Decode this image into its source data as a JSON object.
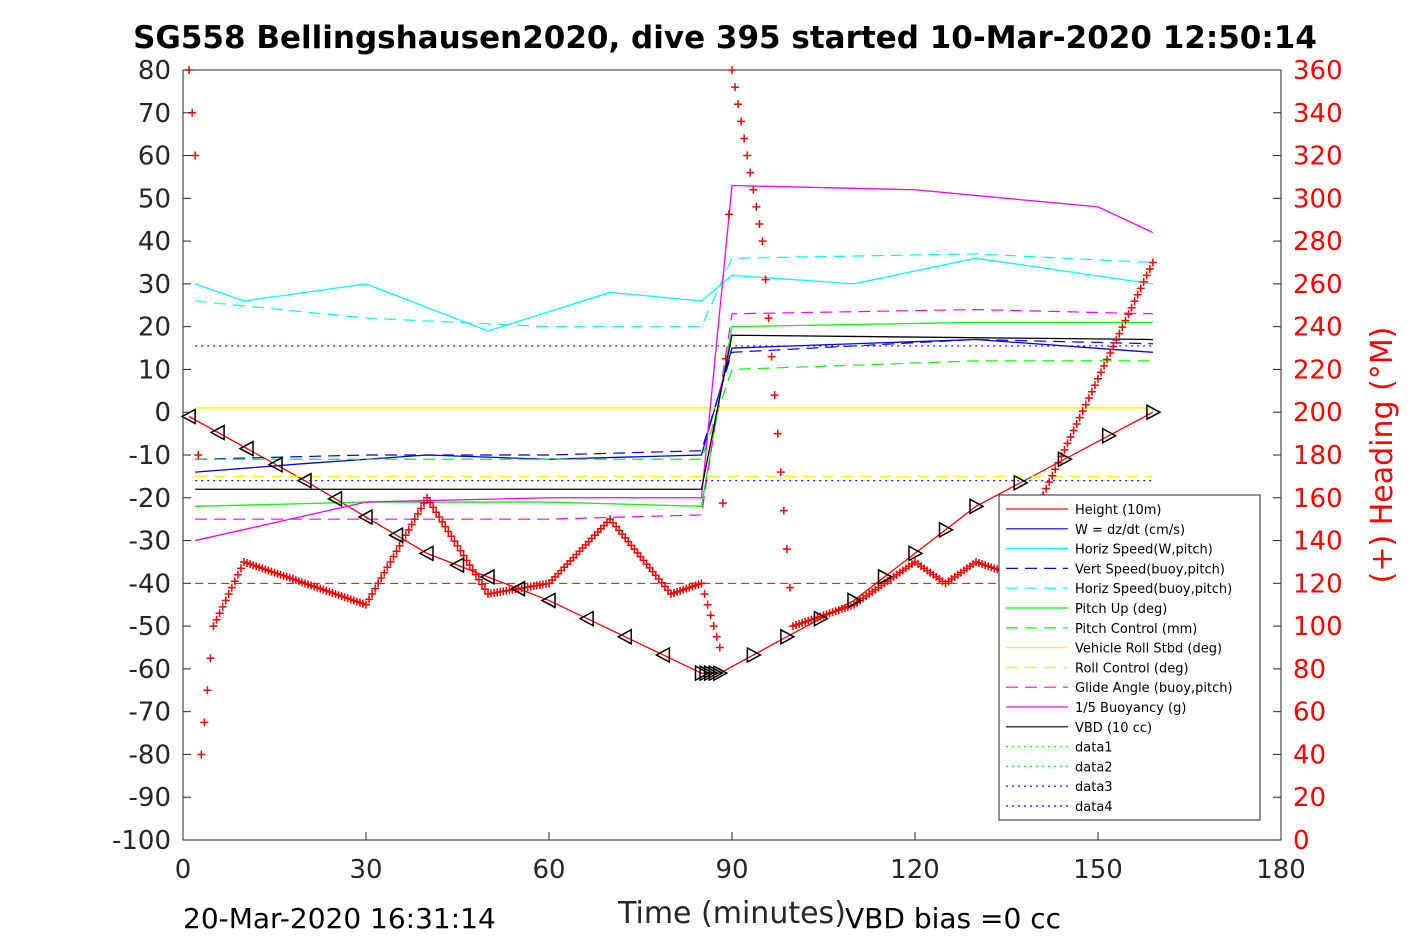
{
  "chart_data": {
    "type": "line",
    "title": "SG558 Bellingshausen2020, dive 395 started 10-Mar-2020 12:50:14",
    "xlabel": "Time (minutes)",
    "ylabel": "",
    "ylabel_right": "(+) Heading (°M)",
    "xlim": [
      0,
      180
    ],
    "ylim": [
      -100,
      80
    ],
    "ylim_right": [
      0,
      360
    ],
    "x_ticks": [
      "0",
      "30",
      "60",
      "90",
      "120",
      "150",
      "180"
    ],
    "y_ticks": [
      "80",
      "70",
      "60",
      "50",
      "40",
      "30",
      "20",
      "10",
      "0",
      "-10",
      "-20",
      "-30",
      "-40",
      "-50",
      "-60",
      "-70",
      "-80",
      "-90",
      "-100"
    ],
    "y_ticks_right": [
      "360",
      "340",
      "320",
      "300",
      "280",
      "260",
      "240",
      "220",
      "200",
      "180",
      "160",
      "140",
      "120",
      "100",
      "80",
      "60",
      "40",
      "20",
      "0"
    ],
    "grid": false,
    "legend_position": "bottom-right",
    "footer_left": "20-Mar-2020 16:31:14",
    "footer_right": "VBD bias =0 cc",
    "series": [
      {
        "name": "Height (10m)",
        "color": "#ff0000",
        "style": "solid",
        "x": [
          1,
          20,
          40,
          60,
          85,
          88,
          110,
          130,
          159
        ],
        "y": [
          -1,
          -16,
          -33,
          -44,
          -61,
          -61,
          -44,
          -22,
          0
        ]
      },
      {
        "name": "W = dz/dt (cm/s)",
        "color": "#0000ff",
        "style": "solid",
        "x": [
          2,
          20,
          40,
          60,
          85,
          90,
          110,
          130,
          159
        ],
        "y": [
          -14,
          -12,
          -10,
          -11,
          -10,
          15,
          16,
          17,
          14
        ]
      },
      {
        "name": "Horiz Speed(W,pitch)",
        "color": "#00ffff",
        "style": "solid",
        "x": [
          2,
          10,
          30,
          50,
          70,
          85,
          90,
          110,
          130,
          159
        ],
        "y": [
          30,
          26,
          30,
          19,
          28,
          26,
          32,
          30,
          36,
          30
        ]
      },
      {
        "name": "Vert Speed(buoy,pitch)",
        "color": "#0000ff",
        "style": "dashed",
        "x": [
          2,
          30,
          60,
          85,
          90,
          130,
          159
        ],
        "y": [
          -11,
          -10,
          -10,
          -9,
          14,
          17,
          16
        ]
      },
      {
        "name": "Horiz Speed(buoy,pitch)",
        "color": "#00ffff",
        "style": "dashed",
        "x": [
          2,
          30,
          60,
          85,
          90,
          130,
          159
        ],
        "y": [
          26,
          22,
          20,
          20,
          36,
          37,
          35
        ]
      },
      {
        "name": "Pitch Up (deg)",
        "color": "#00ff00",
        "style": "solid",
        "x": [
          2,
          30,
          60,
          85,
          90,
          130,
          159
        ],
        "y": [
          -22,
          -21,
          -21,
          -22,
          20,
          21,
          21
        ]
      },
      {
        "name": "Pitch Control (mm)",
        "color": "#00ff00",
        "style": "dashed",
        "x": [
          2,
          85,
          90,
          130,
          159
        ],
        "y": [
          -11,
          -11,
          10,
          12,
          12
        ]
      },
      {
        "name": "Vehicle Roll Stbd (deg)",
        "color": "#ffff00",
        "style": "solid",
        "x": [
          2,
          30,
          60,
          85,
          90,
          130,
          159
        ],
        "y": [
          1,
          1,
          1,
          1,
          1,
          1,
          1
        ]
      },
      {
        "name": "Roll Control (deg)",
        "color": "#ffff00",
        "style": "dashed",
        "x": [
          2,
          85,
          90,
          159
        ],
        "y": [
          -15,
          -15,
          -15,
          -15
        ]
      },
      {
        "name": "Glide Angle (buoy,pitch)",
        "color": "#ff00ff",
        "style": "dashed",
        "x": [
          2,
          30,
          60,
          85,
          90,
          130,
          159
        ],
        "y": [
          -25,
          -25,
          -25,
          -24,
          23,
          24,
          23
        ]
      },
      {
        "name": "1/5 Buoyancy (g)",
        "color": "#ff00ff",
        "style": "solid",
        "x": [
          2,
          30,
          60,
          85,
          90,
          120,
          150,
          159
        ],
        "y": [
          -30,
          -21,
          -20,
          -20,
          53,
          52,
          48,
          42
        ]
      },
      {
        "name": "VBD (10 cc)",
        "color": "#000000",
        "style": "solid",
        "x": [
          2,
          85,
          90,
          159
        ],
        "y": [
          -18,
          -18,
          18,
          17
        ]
      },
      {
        "name": "data1",
        "color": "#00ff00",
        "style": "dotted",
        "x": [],
        "y": []
      },
      {
        "name": "data2",
        "color": "#00ff00",
        "style": "dotted",
        "x": [],
        "y": []
      },
      {
        "name": "data3",
        "color": "#0000ff",
        "style": "dotted",
        "x": [
          2,
          159
        ],
        "y": [
          -16,
          -16
        ]
      },
      {
        "name": "data4",
        "color": "#0000ff",
        "style": "dotted",
        "x": [
          2,
          159
        ],
        "y": [
          15.5,
          15.5
        ]
      },
      {
        "name": "(+) Heading (°M)",
        "axis": "right",
        "color": "#ff0000",
        "marker": "+",
        "x": [
          1,
          2,
          3,
          5,
          10,
          20,
          30,
          40,
          50,
          60,
          70,
          80,
          85,
          88,
          90,
          95,
          100,
          110,
          120,
          125,
          130,
          135,
          159
        ],
        "y": [
          360,
          320,
          40,
          100,
          130,
          120,
          110,
          160,
          115,
          120,
          150,
          115,
          120,
          90,
          360,
          280,
          100,
          110,
          130,
          120,
          130,
          125,
          270
        ]
      }
    ]
  },
  "colors": {
    "heading": "#ff0000",
    "axis": "#262626"
  }
}
